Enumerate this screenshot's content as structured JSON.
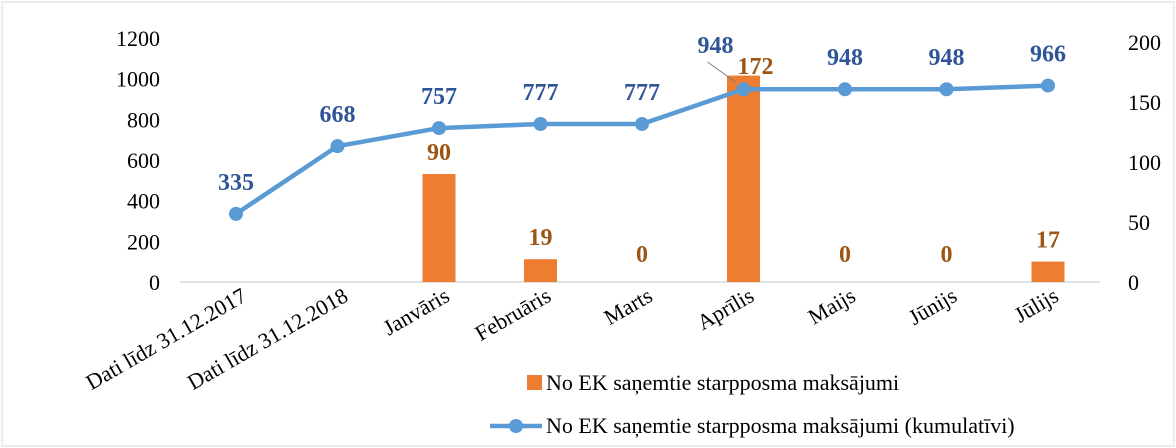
{
  "chart_data": {
    "type": "bar",
    "categories": [
      "Dati līdz 31.12.2017",
      "Dati līdz 31.12.2018",
      "Janvāris",
      "Februāris",
      "Marts",
      "Aprīlis",
      "Maijs",
      "Jūnijs",
      "Jūlijs"
    ],
    "series": [
      {
        "name": "No EK saņemtie starpposma maksājumi",
        "type": "bar",
        "axis": "right",
        "color": "#ED7D31",
        "values": [
          null,
          null,
          90,
          19,
          0,
          172,
          0,
          0,
          17
        ],
        "labels": [
          "",
          "",
          "90",
          "19",
          "0",
          "172",
          "0",
          "0",
          "17"
        ]
      },
      {
        "name": "No EK saņemtie starpposma maksājumi (kumulatīvi)",
        "type": "line",
        "axis": "left",
        "color": "#5B9BD5",
        "values": [
          335,
          668,
          757,
          777,
          777,
          948,
          948,
          948,
          966
        ],
        "labels": [
          "335",
          "668",
          "757",
          "777",
          "777",
          "948",
          "948",
          "948",
          "966"
        ]
      }
    ],
    "y_left": {
      "min": 0,
      "max": 1200,
      "ticks": [
        "0",
        "200",
        "400",
        "600",
        "800",
        "1000",
        "1200"
      ]
    },
    "y_right": {
      "min": 0,
      "max": 200,
      "ticks": [
        "0",
        "50",
        "100",
        "150",
        "200"
      ]
    },
    "grid": false,
    "legend_position": "bottom",
    "colors": {
      "bar_label": "#9C5513",
      "line_label": "#2F5597"
    }
  }
}
